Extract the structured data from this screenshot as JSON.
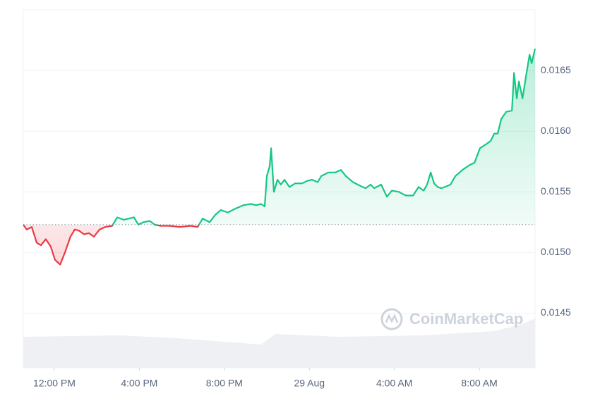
{
  "chart_data": {
    "type": "line",
    "watermark": "CoinMarketCap",
    "x": [
      -1.46,
      -1.3,
      -1.06,
      -0.83,
      -0.63,
      -0.4,
      -0.17,
      0.03,
      0.27,
      0.5,
      0.76,
      0.96,
      1.16,
      1.4,
      1.63,
      1.86,
      2.13,
      2.39,
      2.72,
      2.96,
      3.26,
      3.52,
      3.75,
      3.95,
      4.19,
      4.49,
      4.72,
      4.98,
      5.42,
      5.91,
      6.41,
      6.74,
      6.98,
      7.31,
      7.57,
      7.84,
      8.17,
      8.5,
      8.9,
      9.24,
      9.5,
      9.73,
      9.9,
      10.0,
      10.13,
      10.2,
      10.33,
      10.5,
      10.66,
      10.83,
      11.06,
      11.33,
      11.66,
      11.89,
      12.13,
      12.39,
      12.56,
      12.89,
      13.22,
      13.49,
      13.72,
      14.05,
      14.39,
      14.65,
      14.88,
      15.05,
      15.38,
      15.65,
      15.88,
      16.21,
      16.54,
      16.88,
      17.14,
      17.38,
      17.54,
      17.71,
      17.87,
      18.04,
      18.21,
      18.37,
      18.64,
      18.87,
      19.2,
      19.53,
      19.77,
      20.03,
      20.3,
      20.53,
      20.7,
      20.86,
      21.03,
      21.26,
      21.53,
      21.63,
      21.76,
      21.86,
      22.03,
      22.19,
      22.36,
      22.46,
      22.62
    ],
    "values": [
      0.01523,
      0.01519,
      0.01521,
      0.01508,
      0.01506,
      0.01511,
      0.01505,
      0.01494,
      0.0149,
      0.015,
      0.01513,
      0.01519,
      0.01518,
      0.01515,
      0.01516,
      0.01513,
      0.01519,
      0.01521,
      0.01522,
      0.01529,
      0.01527,
      0.01528,
      0.01529,
      0.01523,
      0.01525,
      0.01526,
      0.01523,
      0.01522,
      0.01522,
      0.01521,
      0.01522,
      0.01521,
      0.01528,
      0.01525,
      0.01531,
      0.01535,
      0.01533,
      0.01536,
      0.01539,
      0.0154,
      0.01539,
      0.0154,
      0.01538,
      0.01563,
      0.01571,
      0.01586,
      0.0155,
      0.0156,
      0.01556,
      0.0156,
      0.01554,
      0.01557,
      0.01557,
      0.01559,
      0.0156,
      0.01558,
      0.01563,
      0.01566,
      0.01566,
      0.01568,
      0.01563,
      0.01558,
      0.01555,
      0.01553,
      0.01556,
      0.01553,
      0.01556,
      0.01546,
      0.01551,
      0.0155,
      0.01547,
      0.01547,
      0.01554,
      0.01551,
      0.01556,
      0.01566,
      0.01557,
      0.01554,
      0.01553,
      0.01554,
      0.01556,
      0.01563,
      0.01568,
      0.01572,
      0.01574,
      0.01586,
      0.01589,
      0.01592,
      0.01598,
      0.01598,
      0.0161,
      0.01616,
      0.01617,
      0.01648,
      0.01627,
      0.01641,
      0.01627,
      0.01645,
      0.01663,
      0.01656,
      0.01668
    ],
    "baseline": 0.01523,
    "up_color": "#16c784",
    "down_color": "#ea3943",
    "xlim": [
      -1.46,
      22.62
    ],
    "xticks": [
      {
        "value": 0,
        "label": "12:00 PM"
      },
      {
        "value": 4,
        "label": "4:00 PM"
      },
      {
        "value": 8,
        "label": "8:00 PM"
      },
      {
        "value": 12,
        "label": "29 Aug"
      },
      {
        "value": 16,
        "label": "4:00 AM"
      },
      {
        "value": 20,
        "label": "8:00 AM"
      }
    ],
    "ylim": [
      0.01405,
      0.017
    ],
    "yticks": [
      0.0145,
      {
        "value": 0.015,
        "label": "0.0150"
      },
      0.0155,
      {
        "value": 0.016,
        "label": "0.0160"
      },
      0.0165
    ],
    "grid": true
  }
}
